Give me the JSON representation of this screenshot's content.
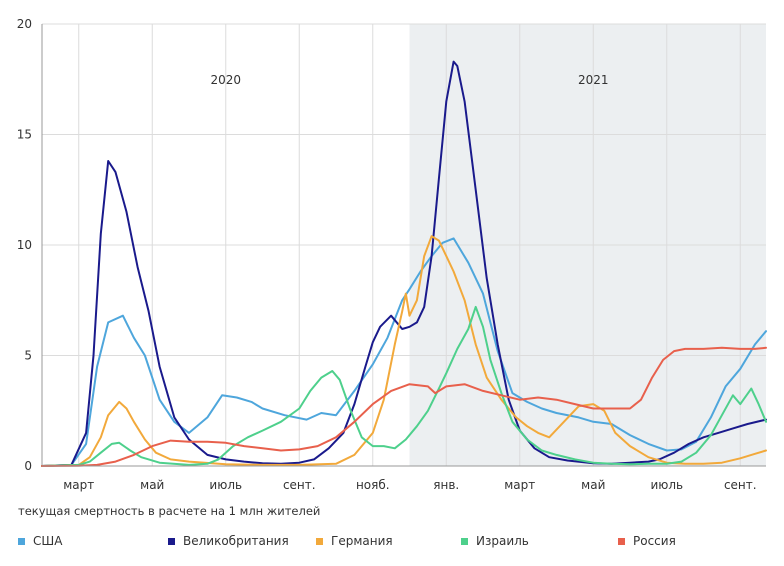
{
  "chart_data": {
    "type": "line",
    "title": "",
    "caption": "текущая смертность в расчете на 1 млн жителей",
    "ylim": [
      0,
      20
    ],
    "yticks": [
      0,
      5,
      10,
      15,
      20
    ],
    "x_unit": "month_index_from_2020-02-01",
    "xlim": [
      0,
      19.7
    ],
    "month_ticks": [
      {
        "label": "март",
        "x": 1
      },
      {
        "label": "май",
        "x": 3
      },
      {
        "label": "июль",
        "x": 5
      },
      {
        "label": "сент.",
        "x": 7
      },
      {
        "label": "нояб.",
        "x": 9
      },
      {
        "label": "янв.",
        "x": 11
      },
      {
        "label": "март",
        "x": 13
      },
      {
        "label": "май",
        "x": 15
      },
      {
        "label": "июль",
        "x": 17
      },
      {
        "label": "сент.",
        "x": 19
      }
    ],
    "year_labels": [
      {
        "label": "2020",
        "x": 5
      },
      {
        "label": "2021",
        "x": 15
      }
    ],
    "shaded_from": 10.0,
    "series": [
      {
        "name": "США",
        "color": "#4ea6dc",
        "points": [
          [
            0,
            0
          ],
          [
            0.8,
            0.05
          ],
          [
            1.2,
            1
          ],
          [
            1.5,
            4.5
          ],
          [
            1.8,
            6.5
          ],
          [
            2.2,
            6.8
          ],
          [
            2.5,
            5.8
          ],
          [
            2.8,
            5
          ],
          [
            3.2,
            3
          ],
          [
            3.6,
            2
          ],
          [
            4,
            1.5
          ],
          [
            4.5,
            2.2
          ],
          [
            4.9,
            3.2
          ],
          [
            5.3,
            3.1
          ],
          [
            5.7,
            2.9
          ],
          [
            6,
            2.6
          ],
          [
            6.6,
            2.3
          ],
          [
            7.2,
            2.1
          ],
          [
            7.6,
            2.4
          ],
          [
            8,
            2.3
          ],
          [
            8.5,
            3.4
          ],
          [
            9,
            4.6
          ],
          [
            9.4,
            5.8
          ],
          [
            9.8,
            7.5
          ],
          [
            10,
            8
          ],
          [
            10.3,
            8.8
          ],
          [
            10.6,
            9.5
          ],
          [
            10.9,
            10.1
          ],
          [
            11.2,
            10.3
          ],
          [
            11.6,
            9.2
          ],
          [
            12,
            7.8
          ],
          [
            12.4,
            5.2
          ],
          [
            12.8,
            3.3
          ],
          [
            13.2,
            2.9
          ],
          [
            13.6,
            2.6
          ],
          [
            14,
            2.4
          ],
          [
            14.6,
            2.2
          ],
          [
            15,
            2
          ],
          [
            15.5,
            1.9
          ],
          [
            16,
            1.4
          ],
          [
            16.5,
            1
          ],
          [
            17,
            0.7
          ],
          [
            17.4,
            0.75
          ],
          [
            17.8,
            1.1
          ],
          [
            18.2,
            2.2
          ],
          [
            18.6,
            3.6
          ],
          [
            19,
            4.4
          ],
          [
            19.4,
            5.5
          ],
          [
            19.7,
            6.1
          ]
        ]
      },
      {
        "name": "Великобритания",
        "color": "#1a1a8c",
        "points": [
          [
            0,
            0
          ],
          [
            0.8,
            0.05
          ],
          [
            1.2,
            1.5
          ],
          [
            1.4,
            5
          ],
          [
            1.6,
            10.5
          ],
          [
            1.8,
            13.8
          ],
          [
            2.0,
            13.3
          ],
          [
            2.3,
            11.5
          ],
          [
            2.6,
            9
          ],
          [
            2.9,
            7
          ],
          [
            3.2,
            4.5
          ],
          [
            3.6,
            2.2
          ],
          [
            4,
            1.2
          ],
          [
            4.5,
            0.5
          ],
          [
            5,
            0.3
          ],
          [
            5.5,
            0.2
          ],
          [
            6,
            0.12
          ],
          [
            6.5,
            0.1
          ],
          [
            7,
            0.15
          ],
          [
            7.4,
            0.3
          ],
          [
            7.8,
            0.8
          ],
          [
            8.2,
            1.5
          ],
          [
            8.5,
            2.8
          ],
          [
            8.8,
            4.5
          ],
          [
            9.0,
            5.6
          ],
          [
            9.2,
            6.3
          ],
          [
            9.5,
            6.8
          ],
          [
            9.8,
            6.2
          ],
          [
            10,
            6.3
          ],
          [
            10.2,
            6.5
          ],
          [
            10.4,
            7.2
          ],
          [
            10.6,
            9.5
          ],
          [
            10.8,
            13
          ],
          [
            11.0,
            16.5
          ],
          [
            11.2,
            18.3
          ],
          [
            11.3,
            18.1
          ],
          [
            11.5,
            16.5
          ],
          [
            11.8,
            12.5
          ],
          [
            12.1,
            8.5
          ],
          [
            12.4,
            5.5
          ],
          [
            12.7,
            3
          ],
          [
            13,
            1.6
          ],
          [
            13.4,
            0.8
          ],
          [
            13.8,
            0.4
          ],
          [
            14.3,
            0.25
          ],
          [
            15,
            0.12
          ],
          [
            15.5,
            0.1
          ],
          [
            16,
            0.15
          ],
          [
            16.5,
            0.2
          ],
          [
            16.8,
            0.3
          ],
          [
            17.2,
            0.6
          ],
          [
            17.6,
            1.0
          ],
          [
            18,
            1.3
          ],
          [
            18.4,
            1.5
          ],
          [
            18.8,
            1.7
          ],
          [
            19.2,
            1.9
          ],
          [
            19.7,
            2.1
          ]
        ]
      },
      {
        "name": "Германия",
        "color": "#f2a93b",
        "points": [
          [
            0,
            0
          ],
          [
            1.0,
            0.05
          ],
          [
            1.3,
            0.4
          ],
          [
            1.6,
            1.3
          ],
          [
            1.8,
            2.3
          ],
          [
            2.1,
            2.9
          ],
          [
            2.3,
            2.6
          ],
          [
            2.5,
            2
          ],
          [
            2.8,
            1.2
          ],
          [
            3.1,
            0.6
          ],
          [
            3.5,
            0.3
          ],
          [
            4,
            0.2
          ],
          [
            5,
            0.08
          ],
          [
            6,
            0.05
          ],
          [
            7,
            0.05
          ],
          [
            8,
            0.1
          ],
          [
            8.5,
            0.5
          ],
          [
            9,
            1.5
          ],
          [
            9.3,
            3
          ],
          [
            9.6,
            5.5
          ],
          [
            9.8,
            7
          ],
          [
            9.9,
            7.8
          ],
          [
            10,
            6.8
          ],
          [
            10.2,
            7.5
          ],
          [
            10.4,
            9.5
          ],
          [
            10.6,
            10.4
          ],
          [
            10.8,
            10.2
          ],
          [
            11.0,
            9.5
          ],
          [
            11.2,
            8.8
          ],
          [
            11.5,
            7.5
          ],
          [
            11.8,
            5.5
          ],
          [
            12.1,
            4
          ],
          [
            12.5,
            3
          ],
          [
            12.9,
            2.2
          ],
          [
            13.2,
            1.8
          ],
          [
            13.5,
            1.5
          ],
          [
            13.8,
            1.3
          ],
          [
            14.2,
            2
          ],
          [
            14.6,
            2.7
          ],
          [
            15,
            2.8
          ],
          [
            15.3,
            2.5
          ],
          [
            15.6,
            1.5
          ],
          [
            16,
            0.9
          ],
          [
            16.5,
            0.4
          ],
          [
            17,
            0.15
          ],
          [
            17.5,
            0.1
          ],
          [
            18,
            0.1
          ],
          [
            18.5,
            0.15
          ],
          [
            19,
            0.35
          ],
          [
            19.4,
            0.55
          ],
          [
            19.7,
            0.7
          ]
        ]
      },
      {
        "name": "Израиль",
        "color": "#4ed08c",
        "points": [
          [
            0,
            0
          ],
          [
            1.0,
            0.05
          ],
          [
            1.3,
            0.2
          ],
          [
            1.6,
            0.6
          ],
          [
            1.9,
            1
          ],
          [
            2.1,
            1.05
          ],
          [
            2.4,
            0.7
          ],
          [
            2.7,
            0.4
          ],
          [
            3.2,
            0.15
          ],
          [
            4,
            0.05
          ],
          [
            4.5,
            0.1
          ],
          [
            4.8,
            0.3
          ],
          [
            5.2,
            0.9
          ],
          [
            5.6,
            1.3
          ],
          [
            6,
            1.6
          ],
          [
            6.5,
            2
          ],
          [
            7,
            2.6
          ],
          [
            7.3,
            3.4
          ],
          [
            7.6,
            4.0
          ],
          [
            7.9,
            4.3
          ],
          [
            8.1,
            3.9
          ],
          [
            8.4,
            2.5
          ],
          [
            8.7,
            1.3
          ],
          [
            9,
            0.9
          ],
          [
            9.3,
            0.9
          ],
          [
            9.6,
            0.8
          ],
          [
            9.9,
            1.2
          ],
          [
            10.2,
            1.8
          ],
          [
            10.5,
            2.5
          ],
          [
            10.8,
            3.5
          ],
          [
            11,
            4.2
          ],
          [
            11.3,
            5.3
          ],
          [
            11.6,
            6.2
          ],
          [
            11.8,
            7.2
          ],
          [
            12.0,
            6.3
          ],
          [
            12.2,
            4.8
          ],
          [
            12.5,
            3.3
          ],
          [
            12.8,
            2
          ],
          [
            13.2,
            1.2
          ],
          [
            13.6,
            0.7
          ],
          [
            14,
            0.5
          ],
          [
            14.5,
            0.3
          ],
          [
            15,
            0.15
          ],
          [
            15.5,
            0.1
          ],
          [
            16,
            0.08
          ],
          [
            16.5,
            0.1
          ],
          [
            17,
            0.1
          ],
          [
            17.4,
            0.2
          ],
          [
            17.8,
            0.6
          ],
          [
            18.2,
            1.4
          ],
          [
            18.5,
            2.3
          ],
          [
            18.8,
            3.2
          ],
          [
            19.0,
            2.8
          ],
          [
            19.3,
            3.5
          ],
          [
            19.5,
            2.8
          ],
          [
            19.7,
            2.0
          ]
        ]
      },
      {
        "name": "Россия",
        "color": "#e8604c",
        "points": [
          [
            0,
            0
          ],
          [
            1.0,
            0.01
          ],
          [
            1.5,
            0.05
          ],
          [
            2,
            0.2
          ],
          [
            2.5,
            0.5
          ],
          [
            3,
            0.9
          ],
          [
            3.5,
            1.15
          ],
          [
            4,
            1.1
          ],
          [
            4.5,
            1.1
          ],
          [
            5,
            1.05
          ],
          [
            5.5,
            0.9
          ],
          [
            6,
            0.8
          ],
          [
            6.5,
            0.7
          ],
          [
            7,
            0.75
          ],
          [
            7.5,
            0.9
          ],
          [
            8,
            1.3
          ],
          [
            8.5,
            2
          ],
          [
            9,
            2.8
          ],
          [
            9.5,
            3.4
          ],
          [
            10,
            3.7
          ],
          [
            10.5,
            3.6
          ],
          [
            10.7,
            3.3
          ],
          [
            11,
            3.6
          ],
          [
            11.5,
            3.7
          ],
          [
            12,
            3.4
          ],
          [
            12.5,
            3.2
          ],
          [
            13,
            3
          ],
          [
            13.5,
            3.1
          ],
          [
            14,
            3
          ],
          [
            14.5,
            2.8
          ],
          [
            15,
            2.6
          ],
          [
            15.5,
            2.6
          ],
          [
            16,
            2.6
          ],
          [
            16.3,
            3.0
          ],
          [
            16.6,
            4.0
          ],
          [
            16.9,
            4.8
          ],
          [
            17.2,
            5.2
          ],
          [
            17.5,
            5.3
          ],
          [
            18,
            5.3
          ],
          [
            18.5,
            5.35
          ],
          [
            19,
            5.3
          ],
          [
            19.4,
            5.3
          ],
          [
            19.7,
            5.35
          ]
        ]
      }
    ]
  },
  "legend": [
    {
      "label": "США",
      "color": "#4ea6dc"
    },
    {
      "label": "Великобритания",
      "color": "#1a1a8c"
    },
    {
      "label": "Германия",
      "color": "#f2a93b"
    },
    {
      "label": "Израиль",
      "color": "#4ed08c"
    },
    {
      "label": "Россия",
      "color": "#e8604c"
    }
  ],
  "colors": {
    "shade": "#eceff1",
    "grid": "#dcdcdc",
    "axis": "#999999"
  }
}
